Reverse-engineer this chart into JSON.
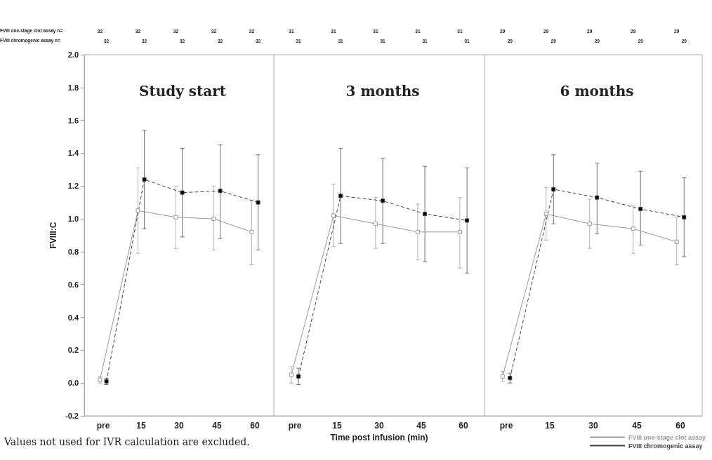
{
  "chart_data": [
    {
      "type": "line",
      "title": "Study start",
      "ylabel": "FVIII:C",
      "categories": [
        "pre",
        "15",
        "30",
        "45",
        "60"
      ],
      "ylim": [
        -0.2,
        2.0
      ],
      "yticks": [
        {
          "value": -0.2,
          "label": "-0.2"
        },
        {
          "value": 0,
          "label": "0.0"
        },
        {
          "value": 0.2,
          "label": "0.2"
        },
        {
          "value": 0.4,
          "label": "0.4"
        },
        {
          "value": 0.6,
          "label": "0.6"
        },
        {
          "value": 0.8,
          "label": "0.8"
        },
        {
          "value": 1.0,
          "label": "1.0"
        },
        {
          "value": 1.2,
          "label": "1.2"
        },
        {
          "value": 1.4,
          "label": "1.4"
        },
        {
          "value": 1.6,
          "label": "1.6"
        },
        {
          "value": 1.8,
          "label": "1.8"
        },
        {
          "value": 2.0,
          "label": "2.0"
        }
      ],
      "grid": false,
      "marker": "square",
      "series": [
        {
          "color": "#999999",
          "line_style": "solid",
          "values": [
            0.02,
            1.05,
            1.01,
            1.0,
            0.92
          ],
          "errors": [
            [
              0.0,
              0.04
            ],
            [
              0.79,
              1.31
            ],
            [
              0.82,
              1.2
            ],
            [
              0.81,
              1.2
            ],
            [
              0.72,
              1.11
            ]
          ]
        },
        {
          "color": "#444444",
          "line_style": "dashed",
          "values": [
            0.01,
            1.24,
            1.16,
            1.17,
            1.1
          ],
          "errors": [
            [
              -0.01,
              0.03
            ],
            [
              0.94,
              1.54
            ],
            [
              0.89,
              1.43
            ],
            [
              0.88,
              1.45
            ],
            [
              0.81,
              1.39
            ]
          ]
        }
      ],
      "annotations": [
        "FVIII one-stage clot assay n=",
        "FVIII chromogenic assay n=",
        "Values not used for IVR calculation are excluded.",
        "32",
        "32",
        "32",
        "32",
        "32",
        "32",
        "32",
        "32",
        "32",
        "32"
      ]
    },
    {
      "type": "line",
      "title": "3 months",
      "xlabel": "Time post infusion (min)",
      "categories": [
        "pre",
        "15",
        "30",
        "45",
        "60"
      ],
      "ylim": [
        -0.2,
        2.0
      ],
      "tick_labels": "x",
      "grid": false,
      "marker": "square",
      "series": [
        {
          "color": "#999999",
          "line_style": "solid",
          "values": [
            0.05,
            1.02,
            0.97,
            0.92,
            0.92
          ],
          "errors": [
            [
              0.0,
              0.1
            ],
            [
              0.83,
              1.21
            ],
            [
              0.82,
              1.13
            ],
            [
              0.75,
              1.09
            ],
            [
              0.7,
              1.13
            ]
          ]
        },
        {
          "color": "#444444",
          "line_style": "dashed",
          "values": [
            0.04,
            1.14,
            1.11,
            1.03,
            0.99
          ],
          "errors": [
            [
              -0.01,
              0.09
            ],
            [
              0.85,
              1.43
            ],
            [
              0.85,
              1.37
            ],
            [
              0.74,
              1.32
            ],
            [
              0.67,
              1.31
            ]
          ]
        }
      ],
      "annotations": [
        "31",
        "31",
        "31",
        "31",
        "31",
        "31",
        "31",
        "31",
        "31",
        "31"
      ]
    },
    {
      "type": "line",
      "title": "6 months",
      "categories": [
        "pre",
        "15",
        "30",
        "45",
        "60"
      ],
      "ylim": [
        -0.2,
        2.0
      ],
      "tick_labels": "x",
      "grid": false,
      "marker": "square",
      "legend": "bottom right",
      "series": [
        {
          "name": "FVIII one-stage clot assay",
          "color": "#999999",
          "line_style": "solid",
          "values": [
            0.04,
            1.03,
            0.97,
            0.94,
            0.86
          ],
          "errors": [
            [
              0.01,
              0.07
            ],
            [
              0.87,
              1.19
            ],
            [
              0.82,
              1.12
            ],
            [
              0.79,
              1.08
            ],
            [
              0.72,
              1.01
            ]
          ]
        },
        {
          "name": "FVIII chromogenic assay",
          "color": "#444444",
          "line_style": "dashed",
          "values": [
            0.03,
            1.18,
            1.13,
            1.06,
            1.01
          ],
          "errors": [
            [
              0.0,
              0.06
            ],
            [
              0.97,
              1.39
            ],
            [
              0.91,
              1.34
            ],
            [
              0.84,
              1.29
            ],
            [
              0.77,
              1.25
            ]
          ]
        }
      ],
      "annotations": [
        "29",
        "29",
        "29",
        "29",
        "29",
        "29",
        "29",
        "29",
        "29",
        "29"
      ]
    }
  ]
}
